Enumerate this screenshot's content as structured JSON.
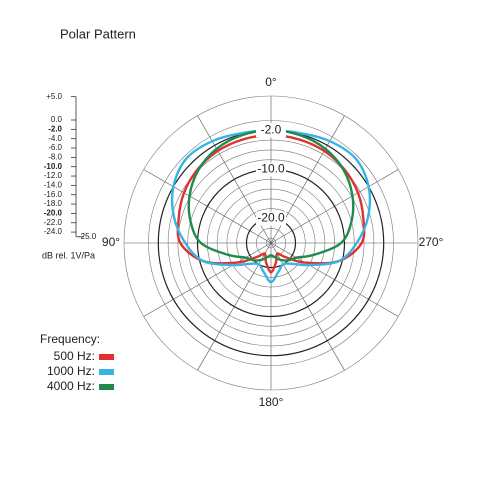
{
  "chart_data": {
    "type": "polar",
    "title": "Polar Pattern",
    "r_label": "dB rel. 1V/Pa",
    "legend_title": "Frequency:",
    "rlim": [
      -25,
      5
    ],
    "rticks": [
      {
        "value": 5,
        "label": "+5.0"
      },
      {
        "value": 0,
        "label": "0.0"
      },
      {
        "value": -2,
        "label": "-2.0"
      },
      {
        "value": -4,
        "label": "-4.0"
      },
      {
        "value": -6,
        "label": "-6.0"
      },
      {
        "value": -8,
        "label": "-8.0"
      },
      {
        "value": -10,
        "label": "-10.0"
      },
      {
        "value": -12,
        "label": "-12.0"
      },
      {
        "value": -14,
        "label": "-14.0"
      },
      {
        "value": -16,
        "label": "-16.0"
      },
      {
        "value": -18,
        "label": "-18.0"
      },
      {
        "value": -20,
        "label": "-20.0"
      },
      {
        "value": -22,
        "label": "-22.0"
      },
      {
        "value": -24,
        "label": "-24.0"
      },
      {
        "value": -25,
        "label": "-25.0"
      }
    ],
    "emphasized_rticks": [
      -2,
      -10,
      -20
    ],
    "ring_labels": [
      {
        "value": -2,
        "label": "-2.0"
      },
      {
        "value": -10,
        "label": "-10.0"
      },
      {
        "value": -20,
        "label": "-20.0"
      }
    ],
    "thetaticks": [
      {
        "value": 0,
        "label": "0°"
      },
      {
        "value": 90,
        "label": "90°"
      },
      {
        "value": 180,
        "label": "180°"
      },
      {
        "value": 270,
        "label": "270°"
      }
    ],
    "theta": [
      0,
      15,
      30,
      45,
      60,
      75,
      90,
      105,
      120,
      135,
      150,
      165,
      180,
      195,
      210,
      225,
      240,
      255,
      270,
      285,
      300,
      315,
      330,
      345
    ],
    "series": [
      {
        "name": "500 Hz:",
        "color": "#e2312d",
        "values": [
          -3,
          -3.1,
          -3.3,
          -3.8,
          -4.5,
          -5.5,
          -6.5,
          -10.7,
          -17,
          -21,
          -22.5,
          -21,
          -19,
          -21,
          -22.5,
          -21,
          -17,
          -10.7,
          -6.5,
          -5.5,
          -4.5,
          -3.8,
          -3.3,
          -3.1
        ]
      },
      {
        "name": "1000 Hz:",
        "color": "#37b4e6",
        "values": [
          -2,
          -1.8,
          -1,
          -0.6,
          -2,
          -4.5,
          -7.5,
          -10.7,
          -16,
          -19,
          -20,
          -19,
          -17,
          -19,
          -20,
          -19,
          -16,
          -10.7,
          -7.5,
          -4.5,
          -2,
          -0.6,
          -1,
          -1.8
        ]
      },
      {
        "name": "4000 Hz:",
        "color": "#1e8a4e",
        "values": [
          -2,
          -2.2,
          -2.8,
          -4,
          -5.8,
          -8,
          -10.7,
          -15.8,
          -19,
          -20,
          -21,
          -22,
          -22.5,
          -22,
          -21,
          -20,
          -19,
          -15.8,
          -10.7,
          -8,
          -5.8,
          -4,
          -2.8,
          -2.2
        ]
      }
    ]
  }
}
